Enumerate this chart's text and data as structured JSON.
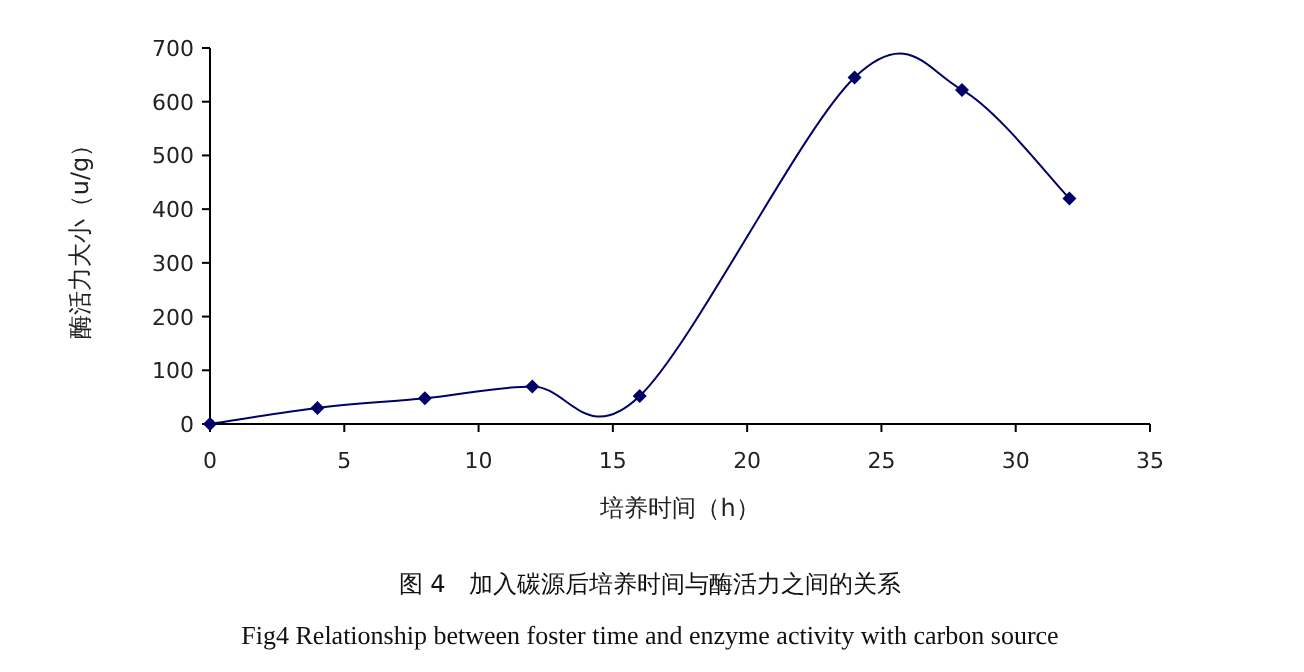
{
  "chart_data": {
    "type": "line",
    "xlabel": "培养时间（h）",
    "ylabel": "酶活力大小（u/g）",
    "x": [
      0,
      4,
      8,
      12,
      16,
      24,
      28,
      32
    ],
    "series": [
      {
        "color": "#000066",
        "values": [
          0,
          30,
          48,
          70,
          52,
          645,
          622,
          420
        ]
      }
    ],
    "xlim": [
      0,
      35
    ],
    "xticks": [
      0,
      5,
      10,
      15,
      20,
      25,
      30,
      35
    ],
    "ylim": [
      0,
      700
    ],
    "yticks": [
      0,
      100,
      200,
      300,
      400,
      500,
      600,
      700
    ],
    "marker": "diamond",
    "annotations": [
      "图 4　加入碳源后培养时间与酶活力之间的关系",
      "Fig4 Relationship between foster time and enzyme activity with carbon source"
    ]
  }
}
